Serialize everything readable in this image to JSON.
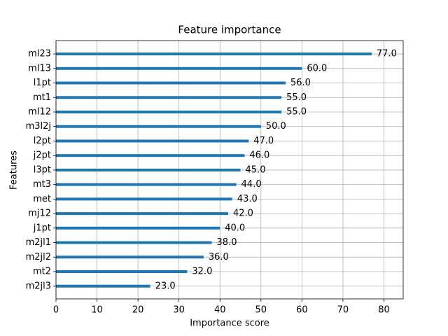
{
  "chart_data": {
    "type": "barh",
    "title": "Feature importance",
    "x_label": "Importance score",
    "y_label": "Features",
    "categories": [
      "ml23",
      "ml13",
      "l1pt",
      "mt1",
      "ml12",
      "m3l2j",
      "l2pt",
      "j2pt",
      "l3pt",
      "mt3",
      "met",
      "mj12",
      "j1pt",
      "m2jl1",
      "m2jl2",
      "mt2",
      "m2jl3"
    ],
    "values": [
      77,
      60,
      56,
      55,
      55,
      50,
      47,
      46,
      45,
      44,
      43,
      42,
      40,
      38,
      36,
      32,
      23
    ],
    "value_labels": [
      "77.0",
      "60.0",
      "56.0",
      "55.0",
      "55.0",
      "50.0",
      "47.0",
      "46.0",
      "45.0",
      "44.0",
      "43.0",
      "42.0",
      "40.0",
      "38.0",
      "36.0",
      "32.0",
      "23.0"
    ],
    "color": "#1f77b4",
    "xlim": [
      0,
      84.7
    ],
    "xticks": [
      0,
      10,
      20,
      30,
      40,
      50,
      60,
      70,
      80
    ],
    "grid": true
  }
}
